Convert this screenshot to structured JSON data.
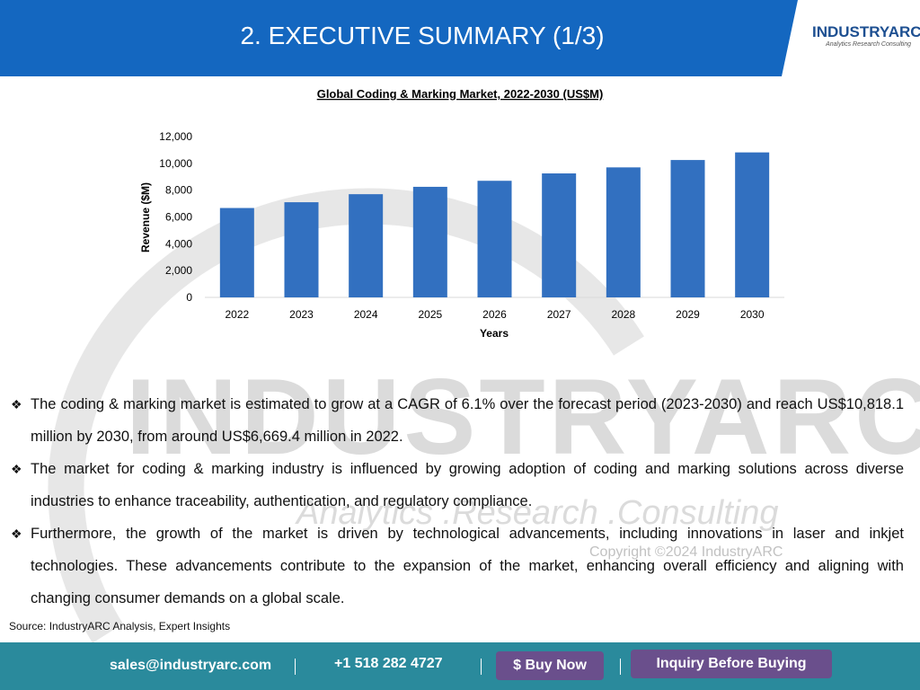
{
  "header": {
    "title": "2. EXECUTIVE SUMMARY (1/3)",
    "logo": "INDUSTRYARC",
    "logo_tagline": "Analytics Research Consulting"
  },
  "watermark": {
    "brand": "INDUSTRYARC",
    "tagline": "Analytics .Research .Consulting",
    "copyright": "Copyright ©2024 IndustryARC"
  },
  "chart_data": {
    "type": "bar",
    "title": "Global Coding & Marking Market, 2022-2030 (US$M)",
    "x_label": "Years",
    "y_label": "Revenue ($M)",
    "categories": [
      "2022",
      "2023",
      "2024",
      "2025",
      "2026",
      "2027",
      "2028",
      "2029",
      "2030"
    ],
    "values": [
      6669.4,
      7100,
      7700,
      8250,
      8700,
      9250,
      9700,
      10250,
      10818.1
    ],
    "color": "#3270c0",
    "ylim": [
      0,
      12000
    ],
    "yticks": [
      0,
      {
        "value": 2000,
        "label": "2,000"
      },
      {
        "value": 4000,
        "label": "4,000"
      },
      {
        "value": 6000,
        "label": "6,000"
      },
      {
        "value": 8000,
        "label": "8,000"
      },
      {
        "value": 10000,
        "label": "10,000"
      },
      {
        "value": 12000,
        "label": "12,000"
      }
    ],
    "grid": false
  },
  "bullets": [
    "The coding & marking market is estimated to grow at a CAGR of 6.1% over the forecast period (2023-2030) and reach US$10,818.1 million by 2030, from around US$6,669.4 million in 2022.",
    "The market for coding & marking industry is influenced by growing adoption of coding and marking solutions across diverse industries to enhance traceability, authentication, and regulatory compliance.",
    "Furthermore, the growth of the market is driven by technological advancements, including innovations in laser and inkjet technologies. These advancements contribute to the expansion of the market, enhancing overall efficiency and aligning with changing consumer demands on a global scale."
  ],
  "source": "Source: IndustryARC Analysis, Expert Insights",
  "footer": {
    "email": "sales@industryarc.com",
    "phone": "+1 518 282 4727",
    "buy": "$ Buy Now",
    "inquiry": "Inquiry Before Buying"
  }
}
